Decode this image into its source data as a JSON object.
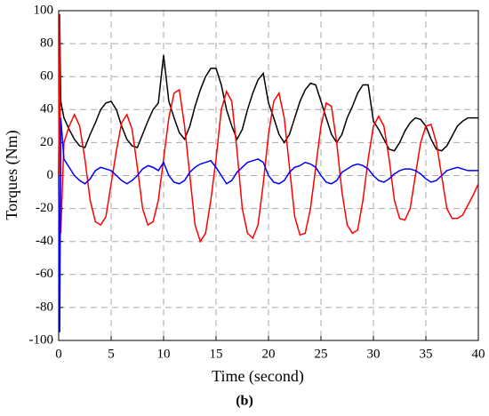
{
  "chart_data": {
    "type": "line",
    "x_label": "Time (second)",
    "y_label": "Torques (Nm)",
    "caption": "(b)",
    "x": [
      0,
      0.1,
      0.2,
      0.5,
      1,
      1.5,
      2,
      2.5,
      3,
      3.5,
      4,
      4.5,
      5,
      5.5,
      6,
      6.5,
      7,
      7.5,
      8,
      8.5,
      9,
      9.5,
      10,
      10.5,
      11,
      11.5,
      12,
      12.5,
      13,
      13.5,
      14,
      14.5,
      15,
      15.5,
      16,
      16.5,
      17,
      17.5,
      18,
      18.5,
      19,
      19.5,
      20,
      20.5,
      21,
      21.5,
      22,
      22.5,
      23,
      23.5,
      24,
      24.5,
      25,
      25.5,
      26,
      26.5,
      27,
      27.5,
      28,
      28.5,
      29,
      29.5,
      30,
      30.5,
      31,
      31.5,
      32,
      32.5,
      33,
      33.5,
      34,
      34.5,
      35,
      35.5,
      36,
      36.5,
      37,
      37.5,
      38,
      38.5,
      39,
      39.5,
      40
    ],
    "series": [
      {
        "color": "#000000",
        "values": [
          0,
          95,
          45,
          35,
          28,
          22,
          18,
          17,
          25,
          32,
          40,
          44,
          45,
          40,
          30,
          22,
          18,
          17,
          25,
          33,
          40,
          44,
          73,
          45,
          35,
          26,
          22,
          30,
          42,
          52,
          60,
          65,
          65,
          55,
          40,
          30,
          22,
          28,
          40,
          50,
          58,
          62,
          44,
          35,
          25,
          20,
          25,
          35,
          45,
          52,
          56,
          55,
          45,
          35,
          25,
          20,
          25,
          35,
          42,
          50,
          55,
          55,
          33,
          28,
          22,
          16,
          15,
          20,
          27,
          32,
          35,
          34,
          30,
          22,
          16,
          15,
          18,
          24,
          30,
          33,
          35,
          35,
          35
        ]
      },
      {
        "color": "#ff0000",
        "values": [
          0,
          98,
          -35,
          20,
          30,
          37,
          30,
          10,
          -15,
          -28,
          -30,
          -25,
          -5,
          15,
          32,
          37,
          28,
          5,
          -20,
          -30,
          -28,
          -15,
          10,
          35,
          50,
          52,
          30,
          0,
          -30,
          -40,
          -35,
          -15,
          10,
          40,
          51,
          45,
          15,
          -20,
          -35,
          -38,
          -30,
          -5,
          25,
          45,
          50,
          35,
          5,
          -25,
          -36,
          -35,
          -20,
          5,
          30,
          44,
          42,
          20,
          -10,
          -30,
          -35,
          -33,
          -15,
          10,
          30,
          36,
          30,
          10,
          -15,
          -26,
          -27,
          -20,
          0,
          20,
          30,
          31,
          20,
          0,
          -20,
          -26,
          -26,
          -24,
          -18,
          -12,
          -5
        ]
      },
      {
        "color": "#0000ff",
        "values": [
          0,
          -95,
          35,
          10,
          5,
          0,
          -3,
          -5,
          -2,
          3,
          5,
          4,
          3,
          0,
          -3,
          -5,
          -3,
          0,
          4,
          6,
          5,
          3,
          8,
          0,
          -4,
          -5,
          -3,
          2,
          5,
          7,
          8,
          9,
          5,
          0,
          -5,
          -3,
          2,
          5,
          8,
          9,
          10,
          8,
          0,
          -4,
          -5,
          -3,
          2,
          5,
          6,
          8,
          7,
          5,
          0,
          -4,
          -5,
          -3,
          2,
          4,
          6,
          7,
          6,
          4,
          0,
          -3,
          -4,
          -2,
          1,
          3,
          4,
          4,
          3,
          1,
          -2,
          -4,
          -3,
          0,
          3,
          4,
          5,
          4,
          3,
          3,
          3
        ]
      }
    ],
    "xlim": [
      0,
      40
    ],
    "xticks": [
      0,
      5,
      10,
      15,
      20,
      25,
      30,
      35,
      40
    ],
    "ylim": [
      -100,
      100
    ],
    "yticks": [
      -100,
      -80,
      -60,
      -40,
      -20,
      0,
      20,
      40,
      60,
      80,
      100
    ],
    "grid": true
  }
}
